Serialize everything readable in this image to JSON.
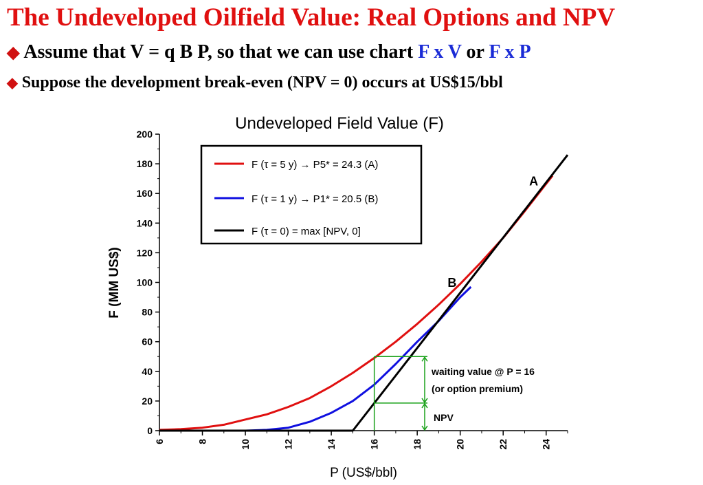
{
  "slide": {
    "title": "The Undeveloped Oilfield Value: Real Options and NPV",
    "bullet1": {
      "text": "Assume that V = q B P, so that we can use chart ",
      "em1": "F x V",
      "mid": " or ",
      "em2": "F x P"
    },
    "bullet2": "Suppose the development break-even (NPV = 0) occurs at US$15/bbl"
  },
  "chart_data": {
    "type": "line",
    "title": "Undeveloped Field Value (F)",
    "xlabel": "P (US$/bbl)",
    "ylabel": "F (MM US$)",
    "xlim": [
      6,
      25
    ],
    "ylim": [
      0,
      200
    ],
    "xticks": [
      6,
      8,
      10,
      12,
      14,
      16,
      18,
      20,
      22,
      24
    ],
    "yticks": [
      0,
      20,
      40,
      60,
      80,
      100,
      120,
      140,
      160,
      180,
      200
    ],
    "series": [
      {
        "name": "F (τ = 5 y) → P5* = 24.3 (A)",
        "color": "#e01010",
        "points": [
          [
            6,
            0.5
          ],
          [
            7,
            1
          ],
          [
            8,
            2
          ],
          [
            9,
            4
          ],
          [
            10,
            7.5
          ],
          [
            11,
            11
          ],
          [
            12,
            16
          ],
          [
            13,
            22
          ],
          [
            14,
            30
          ],
          [
            15,
            39
          ],
          [
            16,
            49
          ],
          [
            17,
            60
          ],
          [
            18,
            72
          ],
          [
            19,
            85
          ],
          [
            20,
            99
          ],
          [
            21,
            114
          ],
          [
            22,
            130
          ],
          [
            23,
            148
          ],
          [
            24.3,
            172
          ]
        ]
      },
      {
        "name": "F (τ = 1 y) → P1* = 20.5 (B)",
        "color": "#1010e0",
        "points": [
          [
            6,
            0
          ],
          [
            10,
            0
          ],
          [
            11,
            0.5
          ],
          [
            12,
            2
          ],
          [
            13,
            6
          ],
          [
            14,
            12
          ],
          [
            15,
            20
          ],
          [
            16,
            31
          ],
          [
            17,
            45
          ],
          [
            18,
            60
          ],
          [
            19,
            74
          ],
          [
            20,
            90
          ],
          [
            20.5,
            97
          ]
        ]
      },
      {
        "name": "F (τ = 0) = max [NPV, 0]",
        "color": "#000000",
        "points": [
          [
            6,
            0
          ],
          [
            15,
            0
          ],
          [
            25,
            186
          ]
        ]
      }
    ],
    "point_labels": [
      {
        "text": "A",
        "x": 24.3,
        "y": 172
      },
      {
        "text": "B",
        "x": 20.5,
        "y": 97
      }
    ],
    "annotation": {
      "at_x": 16,
      "npv": 18.6,
      "F": 50,
      "waiting_label_1": "waiting value @ P = 16",
      "waiting_label_2": "(or option premium)",
      "npv_label": "NPV",
      "color": "#18a018"
    },
    "legend_position": "top-left",
    "grid": false
  }
}
